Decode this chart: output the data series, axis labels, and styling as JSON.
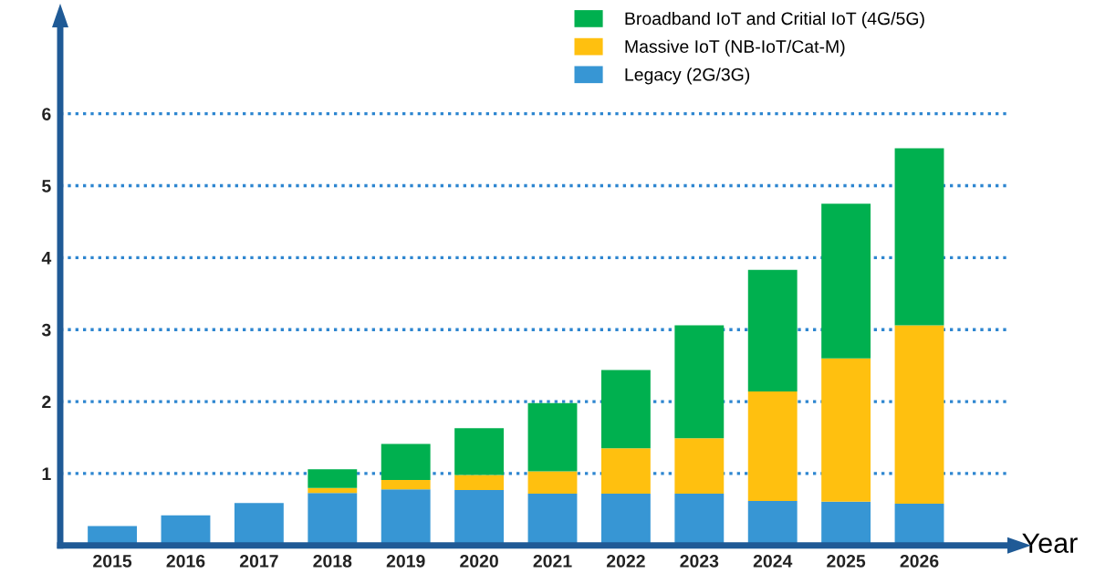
{
  "chart_data": {
    "type": "bar",
    "stacked": true,
    "xlabel": "Year",
    "categories": [
      "2015",
      "2016",
      "2017",
      "2018",
      "2019",
      "2020",
      "2021",
      "2022",
      "2023",
      "2024",
      "2025",
      "2026"
    ],
    "series": [
      {
        "name": "Legacy (2G/3G)",
        "color": "#3796d4",
        "values": [
          0.27,
          0.42,
          0.59,
          0.73,
          0.78,
          0.77,
          0.72,
          0.72,
          0.72,
          0.62,
          0.61,
          0.58
        ]
      },
      {
        "name": "Massive IoT (NB-IoT/Cat-M)",
        "color": "#ffc00f",
        "values": [
          null,
          null,
          null,
          0.07,
          0.13,
          0.21,
          0.31,
          0.63,
          0.77,
          1.52,
          1.99,
          2.48
        ]
      },
      {
        "name": "Broadband IoT and Critial IoT (4G/5G)",
        "color": "#00b04f",
        "values": [
          null,
          null,
          null,
          0.26,
          0.5,
          0.65,
          0.95,
          1.09,
          1.57,
          1.69,
          2.15,
          2.46
        ]
      }
    ],
    "ylim": [
      0,
      7.2
    ],
    "yticks": [
      1,
      2,
      3,
      4,
      5,
      6
    ],
    "grid": "y",
    "legend": "top right"
  }
}
